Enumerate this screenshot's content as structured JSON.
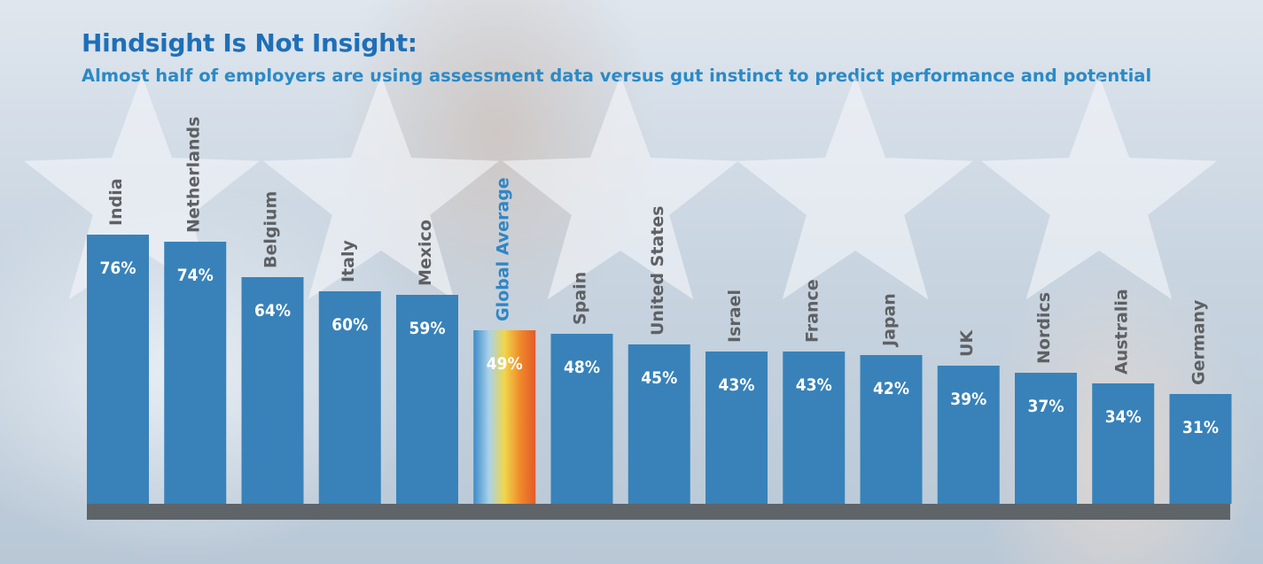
{
  "header": {
    "title": "Hindsight Is Not Insight:",
    "subtitle": "Almost half of employers are using assessment data versus gut instinct to predict performance and potential"
  },
  "colors": {
    "bar": "#3882b9",
    "baseline": "#5f6469",
    "label": "#5e6063",
    "highlight_label": "#2f86c6",
    "value_text": "#ffffff",
    "highlight_gradient": [
      "#3d8bc8",
      "#a9d2ea",
      "#f0d64a",
      "#f08a2a",
      "#e35a2a"
    ]
  },
  "chart_data": {
    "type": "bar",
    "title": "Hindsight Is Not Insight:",
    "subtitle": "Almost half of employers are using assessment data versus gut instinct to predict performance and potential",
    "categories": [
      "India",
      "Netherlands",
      "Belgium",
      "Italy",
      "Mexico",
      "Global Average",
      "Spain",
      "United States",
      "Israel",
      "France",
      "Japan",
      "UK",
      "Nordics",
      "Australia",
      "Germany"
    ],
    "values": [
      76,
      74,
      64,
      60,
      59,
      49,
      48,
      45,
      43,
      43,
      42,
      39,
      37,
      34,
      31
    ],
    "value_labels": [
      "76%",
      "74%",
      "64%",
      "60%",
      "59%",
      "49%",
      "48%",
      "45%",
      "43%",
      "43%",
      "42%",
      "39%",
      "37%",
      "34%",
      "31%"
    ],
    "highlight": "Global Average",
    "unit": "%",
    "grid": false,
    "legend": "none"
  }
}
